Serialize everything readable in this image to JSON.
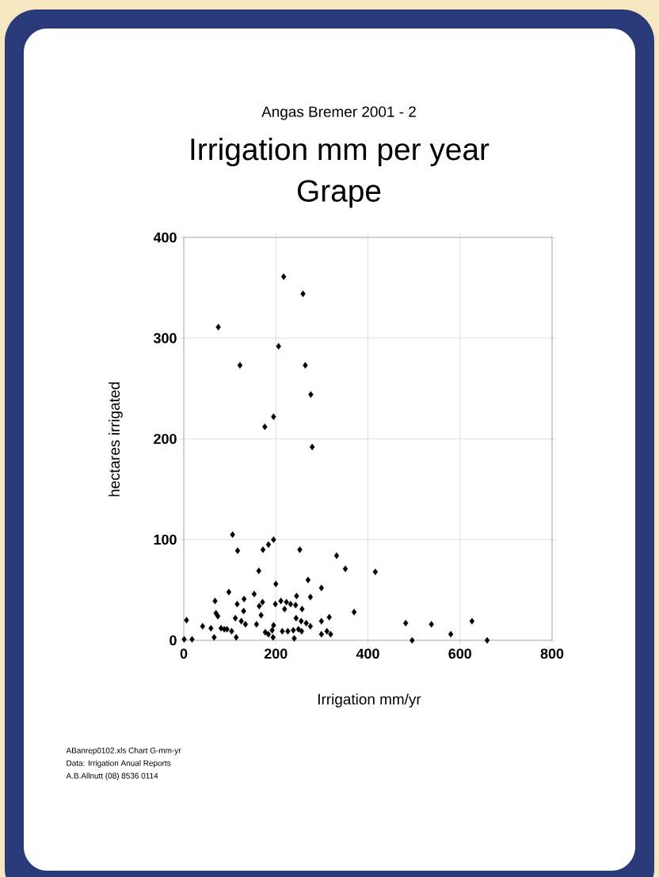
{
  "chart_data": {
    "type": "scatter",
    "title": "Irrigation mm per year",
    "subtitle": "Grape",
    "xlabel": "Irrigation  mm/yr",
    "ylabel": "hectares irrigated",
    "annotations": [
      "Angas Bremer 2001 - 2",
      "ABanrep0102.xls Chart  G-mm-yr",
      "Data: Irrigation Anual Reports",
      "A.B.Allnutt  (08) 8536 0114"
    ],
    "xlim": [
      0,
      800
    ],
    "ylim": [
      0,
      400
    ],
    "xticks": [
      0,
      200,
      400,
      600,
      800
    ],
    "yticks": [
      0,
      100,
      200,
      300,
      400
    ],
    "grid": true,
    "marker": "diamond",
    "series": [
      {
        "color": "#000000",
        "x": [
          217,
          259,
          75,
          206,
          122,
          264,
          276,
          195,
          176,
          279,
          106,
          117,
          172,
          184,
          195,
          252,
          332,
          351,
          163,
          370,
          270,
          200,
          299,
          98,
          153,
          245,
          275,
          131,
          68,
          171,
          211,
          223,
          232,
          116,
          164,
          199,
          243,
          257,
          130,
          70,
          74,
          168,
          219,
          6,
          112,
          125,
          41,
          59,
          81,
          88,
          94,
          134,
          158,
          244,
          255,
          266,
          275,
          299,
          316,
          104,
          177,
          184,
          195,
          192,
          214,
          226,
          238,
          249,
          256,
          311,
          299,
          319,
          114,
          66,
          1,
          18,
          240,
          194,
          416,
          482,
          538,
          580,
          496,
          626,
          659
        ],
        "values": [
          361,
          344,
          311,
          292,
          273,
          273,
          244,
          222,
          212,
          192,
          105,
          89,
          90,
          95,
          100,
          90,
          84,
          71,
          69,
          28,
          60,
          56,
          52,
          48,
          46,
          44,
          43,
          41,
          39,
          38,
          39,
          38,
          36,
          36,
          34,
          36,
          35,
          31,
          29,
          27,
          24,
          25,
          31,
          20,
          22,
          19,
          14,
          12,
          12,
          11,
          11,
          16,
          16,
          22,
          19,
          17,
          14,
          19,
          23,
          9,
          8,
          6,
          15,
          10,
          9,
          9,
          10,
          11,
          9,
          9,
          6,
          6,
          3,
          3,
          1,
          1,
          2,
          3,
          68,
          17,
          16,
          6,
          0,
          19,
          0
        ]
      }
    ]
  }
}
